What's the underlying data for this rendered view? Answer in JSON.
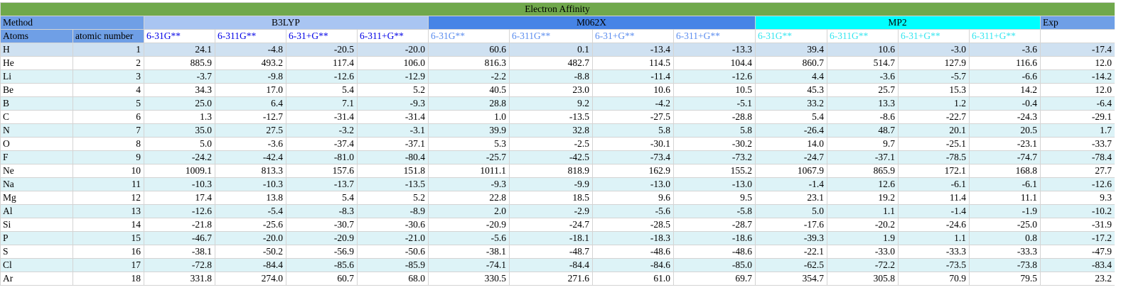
{
  "title": "Electron Affinity",
  "header": {
    "method_label": "Method",
    "atoms_label": "Atoms",
    "atomic_number_label": "atomic number",
    "groups": [
      {
        "name": "B3LYP",
        "bases": [
          "6-31G**",
          "6-311G**",
          "6-31+G**",
          "6-311+G**"
        ]
      },
      {
        "name": "M062X",
        "bases": [
          "6-31G**",
          "6-311G**",
          "6-31+G**",
          "6-311+G**"
        ]
      },
      {
        "name": "MP2",
        "bases": [
          "6-31G**",
          "6-311G**",
          "6-31+G**",
          "6-311+G**"
        ]
      }
    ],
    "exp_label": "Exp"
  },
  "rows": [
    {
      "atom": "H",
      "z": "1",
      "v": [
        "24.1",
        "-4.8",
        "-20.5",
        "-20.0",
        "60.6",
        "0.1",
        "-13.4",
        "-13.3",
        "39.4",
        "10.6",
        "-3.0",
        "-3.6",
        "-17.4"
      ]
    },
    {
      "atom": "He",
      "z": "2",
      "v": [
        "885.9",
        "493.2",
        "117.4",
        "106.0",
        "816.3",
        "482.7",
        "114.5",
        "104.4",
        "860.7",
        "514.7",
        "127.9",
        "116.6",
        "12.0"
      ]
    },
    {
      "atom": "Li",
      "z": "3",
      "v": [
        "-3.7",
        "-9.8",
        "-12.6",
        "-12.9",
        "-2.2",
        "-8.8",
        "-11.4",
        "-12.6",
        "4.4",
        "-3.6",
        "-5.7",
        "-6.6",
        "-14.2"
      ]
    },
    {
      "atom": "Be",
      "z": "4",
      "v": [
        "34.3",
        "17.0",
        "5.4",
        "5.2",
        "40.5",
        "23.0",
        "10.6",
        "10.5",
        "45.3",
        "25.7",
        "15.3",
        "14.2",
        "12.0"
      ]
    },
    {
      "atom": "B",
      "z": "5",
      "v": [
        "25.0",
        "6.4",
        "7.1",
        "-9.3",
        "28.8",
        "9.2",
        "-4.2",
        "-5.1",
        "33.2",
        "13.3",
        "1.2",
        "-0.4",
        "-6.4"
      ]
    },
    {
      "atom": "C",
      "z": "6",
      "v": [
        "1.3",
        "-12.7",
        "-31.4",
        "-31.4",
        "1.0",
        "-13.5",
        "-27.5",
        "-28.8",
        "5.4",
        "-8.6",
        "-22.7",
        "-24.3",
        "-29.1"
      ]
    },
    {
      "atom": "N",
      "z": "7",
      "v": [
        "35.0",
        "27.5",
        "-3.2",
        "-3.1",
        "39.9",
        "32.8",
        "5.8",
        "5.8",
        "-26.4",
        "48.7",
        "20.1",
        "20.5",
        "1.7"
      ]
    },
    {
      "atom": "O",
      "z": "8",
      "v": [
        "5.0",
        "-3.6",
        "-37.4",
        "-37.1",
        "5.3",
        "-2.5",
        "-30.1",
        "-30.2",
        "14.0",
        "9.7",
        "-25.1",
        "-23.1",
        "-33.7"
      ]
    },
    {
      "atom": "F",
      "z": "9",
      "v": [
        "-24.2",
        "-42.4",
        "-81.0",
        "-80.4",
        "-25.7",
        "-42.5",
        "-73.4",
        "-73.2",
        "-24.7",
        "-37.1",
        "-78.5",
        "-74.7",
        "-78.4"
      ]
    },
    {
      "atom": "Ne",
      "z": "10",
      "v": [
        "1009.1",
        "813.3",
        "157.6",
        "151.8",
        "1011.1",
        "818.9",
        "162.9",
        "155.2",
        "1067.9",
        "865.9",
        "172.1",
        "168.8",
        "27.7"
      ]
    },
    {
      "atom": "Na",
      "z": "11",
      "v": [
        "-10.3",
        "-10.3",
        "-13.7",
        "-13.5",
        "-9.3",
        "-9.9",
        "-13.0",
        "-13.0",
        "-1.4",
        "12.6",
        "-6.1",
        "-6.1",
        "-12.6"
      ]
    },
    {
      "atom": "Mg",
      "z": "12",
      "v": [
        "17.4",
        "13.8",
        "5.4",
        "5.2",
        "22.8",
        "18.5",
        "9.6",
        "9.5",
        "23.1",
        "19.2",
        "11.4",
        "11.1",
        "9.3"
      ]
    },
    {
      "atom": "Al",
      "z": "13",
      "v": [
        "-12.6",
        "-5.4",
        "-8.3",
        "-8.9",
        "2.0",
        "-2.9",
        "-5.6",
        "-5.8",
        "5.0",
        "1.1",
        "-1.4",
        "-1.9",
        "-10.2"
      ]
    },
    {
      "atom": "Si",
      "z": "14",
      "v": [
        "-21.8",
        "-25.6",
        "-30.7",
        "-30.6",
        "-20.9",
        "-24.7",
        "-28.5",
        "-28.7",
        "-17.6",
        "-20.2",
        "-24.6",
        "-25.0",
        "-31.9"
      ]
    },
    {
      "atom": "P",
      "z": "15",
      "v": [
        "-46.7",
        "-20.0",
        "-20.9",
        "-21.0",
        "-5.6",
        "-18.1",
        "-18.3",
        "-18.6",
        "-39.3",
        "1.9",
        "1.1",
        "0.8",
        "-17.2"
      ]
    },
    {
      "atom": "S",
      "z": "16",
      "v": [
        "-38.1",
        "-50.2",
        "-56.9",
        "-50.6",
        "-38.1",
        "-48.7",
        "-48.6",
        "-48.6",
        "-22.1",
        "-33.0",
        "-33.3",
        "-33.3",
        "-47.9"
      ]
    },
    {
      "atom": "Cl",
      "z": "17",
      "v": [
        "-72.8",
        "-84.4",
        "-85.6",
        "-85.9",
        "-74.1",
        "-84.4",
        "-84.6",
        "-85.0",
        "-62.5",
        "-72.2",
        "-73.5",
        "-73.8",
        "-83.4"
      ]
    },
    {
      "atom": "Ar",
      "z": "18",
      "v": [
        "331.8",
        "274.0",
        "60.7",
        "68.0",
        "330.5",
        "271.6",
        "61.0",
        "69.7",
        "354.7",
        "305.8",
        "70.9",
        "79.5",
        "23.2"
      ]
    }
  ]
}
